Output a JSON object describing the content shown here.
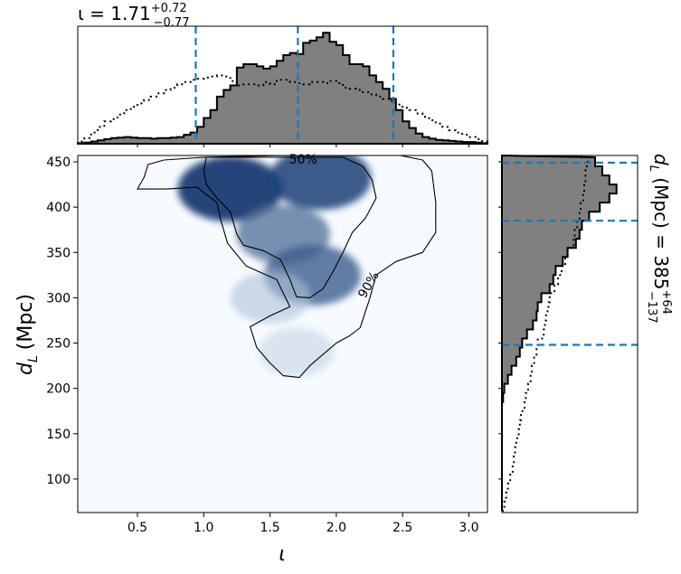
{
  "chart_data": [
    {
      "panel": "joint",
      "type": "heatmap",
      "xlabel": "ι",
      "ylabel_main": "d",
      "ylabel_sub": "L",
      "ylabel_unit": "(Mpc)",
      "xlim": [
        0.05,
        3.14
      ],
      "ylim": [
        63,
        457
      ],
      "xticks": [
        0.5,
        1.0,
        1.5,
        2.0,
        2.5,
        3.0
      ],
      "xtick_labels": [
        "0.5",
        "1.0",
        "1.5",
        "2.0",
        "2.5",
        "3.0"
      ],
      "yticks": [
        100,
        150,
        200,
        250,
        300,
        350,
        400,
        450
      ],
      "ytick_labels": [
        "100",
        "150",
        "200",
        "250",
        "300",
        "350",
        "400",
        "450"
      ],
      "colormap": "Blues",
      "colors": {
        "low": "#f7fbff",
        "high": "#08306b"
      },
      "density_peaks": [
        {
          "x": 1.2,
          "y": 420,
          "weight": 1.0
        },
        {
          "x": 1.88,
          "y": 432,
          "weight": 0.9
        },
        {
          "x": 1.6,
          "y": 370,
          "weight": 0.65
        },
        {
          "x": 1.82,
          "y": 325,
          "weight": 0.75
        },
        {
          "x": 1.5,
          "y": 300,
          "weight": 0.22
        },
        {
          "x": 1.7,
          "y": 240,
          "weight": 0.12
        }
      ],
      "contours": [
        {
          "label": "50%",
          "points": [
            [
              1.02,
              455
            ],
            [
              1.3,
              455
            ],
            [
              1.7,
              455
            ],
            [
              2.05,
              455
            ],
            [
              2.2,
              445
            ],
            [
              2.27,
              430
            ],
            [
              2.3,
              410
            ],
            [
              2.22,
              388
            ],
            [
              2.12,
              372
            ],
            [
              2.05,
              350
            ],
            [
              1.98,
              330
            ],
            [
              1.9,
              310
            ],
            [
              1.8,
              300
            ],
            [
              1.7,
              301
            ],
            [
              1.65,
              320
            ],
            [
              1.58,
              342
            ],
            [
              1.45,
              352
            ],
            [
              1.3,
              358
            ],
            [
              1.25,
              370
            ],
            [
              1.2,
              395
            ],
            [
              1.1,
              410
            ],
            [
              1.02,
              425
            ],
            [
              1.0,
              440
            ],
            [
              1.02,
              455
            ]
          ]
        },
        {
          "label": "90%",
          "points": [
            [
              0.55,
              433
            ],
            [
              0.5,
              420
            ],
            [
              0.72,
              420
            ],
            [
              0.95,
              422
            ],
            [
              1.1,
              405
            ],
            [
              1.13,
              385
            ],
            [
              1.18,
              360
            ],
            [
              1.32,
              335
            ],
            [
              1.55,
              320
            ],
            [
              1.65,
              290
            ],
            [
              1.5,
              280
            ],
            [
              1.35,
              268
            ],
            [
              1.4,
              245
            ],
            [
              1.5,
              228
            ],
            [
              1.6,
              214
            ],
            [
              1.72,
              212
            ],
            [
              1.8,
              225
            ],
            [
              1.92,
              240
            ],
            [
              2.0,
              250
            ],
            [
              2.1,
              258
            ],
            [
              2.18,
              267
            ],
            [
              2.22,
              285
            ],
            [
              2.25,
              298
            ],
            [
              2.3,
              325
            ],
            [
              2.45,
              340
            ],
            [
              2.65,
              350
            ],
            [
              2.75,
              372
            ],
            [
              2.75,
              405
            ],
            [
              2.72,
              440
            ],
            [
              2.65,
              452
            ],
            [
              2.45,
              458
            ],
            [
              2.0,
              458
            ],
            [
              1.6,
              457
            ],
            [
              1.0,
              455
            ],
            [
              0.7,
              452
            ],
            [
              0.58,
              447
            ],
            [
              0.55,
              433
            ]
          ]
        }
      ],
      "annotations": [
        "50%",
        "90%"
      ]
    },
    {
      "panel": "top-marginal",
      "type": "histogram",
      "variable": "ι",
      "title_main": "ι = 1.71",
      "title_sup": "+0.72",
      "title_sub": "−0.77",
      "x": [
        0.05,
        0.1,
        0.15,
        0.2,
        0.25,
        0.3,
        0.35,
        0.4,
        0.45,
        0.5,
        0.55,
        0.6,
        0.65,
        0.7,
        0.75,
        0.8,
        0.85,
        0.9,
        0.95,
        1.0,
        1.05,
        1.1,
        1.15,
        1.2,
        1.25,
        1.3,
        1.35,
        1.4,
        1.45,
        1.5,
        1.55,
        1.6,
        1.65,
        1.7,
        1.75,
        1.8,
        1.85,
        1.9,
        1.95,
        2.0,
        2.05,
        2.1,
        2.15,
        2.2,
        2.25,
        2.3,
        2.35,
        2.4,
        2.45,
        2.5,
        2.55,
        2.6,
        2.65,
        2.7,
        2.75,
        2.8,
        2.85,
        2.9,
        2.95,
        3.0,
        3.05,
        3.1
      ],
      "posterior": [
        0.005,
        0.01,
        0.02,
        0.03,
        0.04,
        0.05,
        0.055,
        0.06,
        0.055,
        0.05,
        0.05,
        0.045,
        0.05,
        0.05,
        0.055,
        0.06,
        0.08,
        0.1,
        0.15,
        0.23,
        0.3,
        0.42,
        0.48,
        0.52,
        0.68,
        0.71,
        0.71,
        0.69,
        0.67,
        0.69,
        0.74,
        0.79,
        0.81,
        0.8,
        0.9,
        0.92,
        0.95,
        0.99,
        0.91,
        0.88,
        0.79,
        0.71,
        0.71,
        0.69,
        0.61,
        0.55,
        0.49,
        0.4,
        0.3,
        0.2,
        0.14,
        0.09,
        0.06,
        0.045,
        0.035,
        0.03,
        0.025,
        0.02,
        0.015,
        0.015,
        0.01,
        0.005
      ],
      "prior": [
        0.02,
        0.05,
        0.1,
        0.15,
        0.2,
        0.22,
        0.26,
        0.3,
        0.33,
        0.36,
        0.39,
        0.42,
        0.45,
        0.48,
        0.5,
        0.53,
        0.55,
        0.57,
        0.58,
        0.59,
        0.6,
        0.61,
        0.6,
        0.56,
        0.52,
        0.53,
        0.53,
        0.52,
        0.55,
        0.53,
        0.57,
        0.57,
        0.55,
        0.54,
        0.53,
        0.55,
        0.55,
        0.54,
        0.56,
        0.54,
        0.5,
        0.49,
        0.48,
        0.46,
        0.44,
        0.42,
        0.4,
        0.38,
        0.35,
        0.32,
        0.3,
        0.27,
        0.24,
        0.21,
        0.18,
        0.15,
        0.12,
        0.1,
        0.08,
        0.06,
        0.04,
        0.02
      ],
      "vlines": [
        0.94,
        1.71,
        2.43
      ],
      "colors": {
        "fill": "#808080",
        "line": "#1f77b4"
      }
    },
    {
      "panel": "right-marginal",
      "type": "histogram",
      "orientation": "horizontal",
      "variable": "dL (Mpc)",
      "label_main": "d",
      "label_sub": "L",
      "label_rest": " (Mpc) = 385",
      "label_sup": "+64",
      "label_subv": "−137",
      "y": [
        70,
        80,
        90,
        100,
        110,
        120,
        130,
        140,
        150,
        160,
        170,
        180,
        190,
        200,
        210,
        220,
        230,
        240,
        250,
        260,
        270,
        280,
        290,
        300,
        310,
        320,
        330,
        340,
        350,
        360,
        370,
        380,
        390,
        400,
        410,
        420,
        430,
        440,
        450
      ],
      "posterior": [
        0.0,
        0.0,
        0.0,
        0.0,
        0.0,
        0.0,
        0.0,
        0.0,
        0.0,
        0.0,
        0.0,
        0.0,
        0.01,
        0.02,
        0.05,
        0.08,
        0.12,
        0.15,
        0.17,
        0.21,
        0.26,
        0.29,
        0.3,
        0.33,
        0.4,
        0.43,
        0.45,
        0.51,
        0.55,
        0.62,
        0.65,
        0.67,
        0.73,
        0.82,
        0.9,
        0.96,
        0.9,
        0.84,
        0.78
      ],
      "prior": [
        0.02,
        0.035,
        0.05,
        0.07,
        0.09,
        0.1,
        0.11,
        0.12,
        0.14,
        0.15,
        0.16,
        0.19,
        0.2,
        0.22,
        0.24,
        0.25,
        0.27,
        0.29,
        0.3,
        0.35,
        0.36,
        0.37,
        0.39,
        0.4,
        0.44,
        0.47,
        0.5,
        0.53,
        0.55,
        0.6,
        0.61,
        0.63,
        0.65,
        0.66,
        0.68,
        0.69,
        0.7,
        0.7,
        0.72
      ],
      "hlines": [
        248,
        385,
        449
      ],
      "colors": {
        "fill": "#808080",
        "line": "#1f77b4"
      }
    }
  ]
}
